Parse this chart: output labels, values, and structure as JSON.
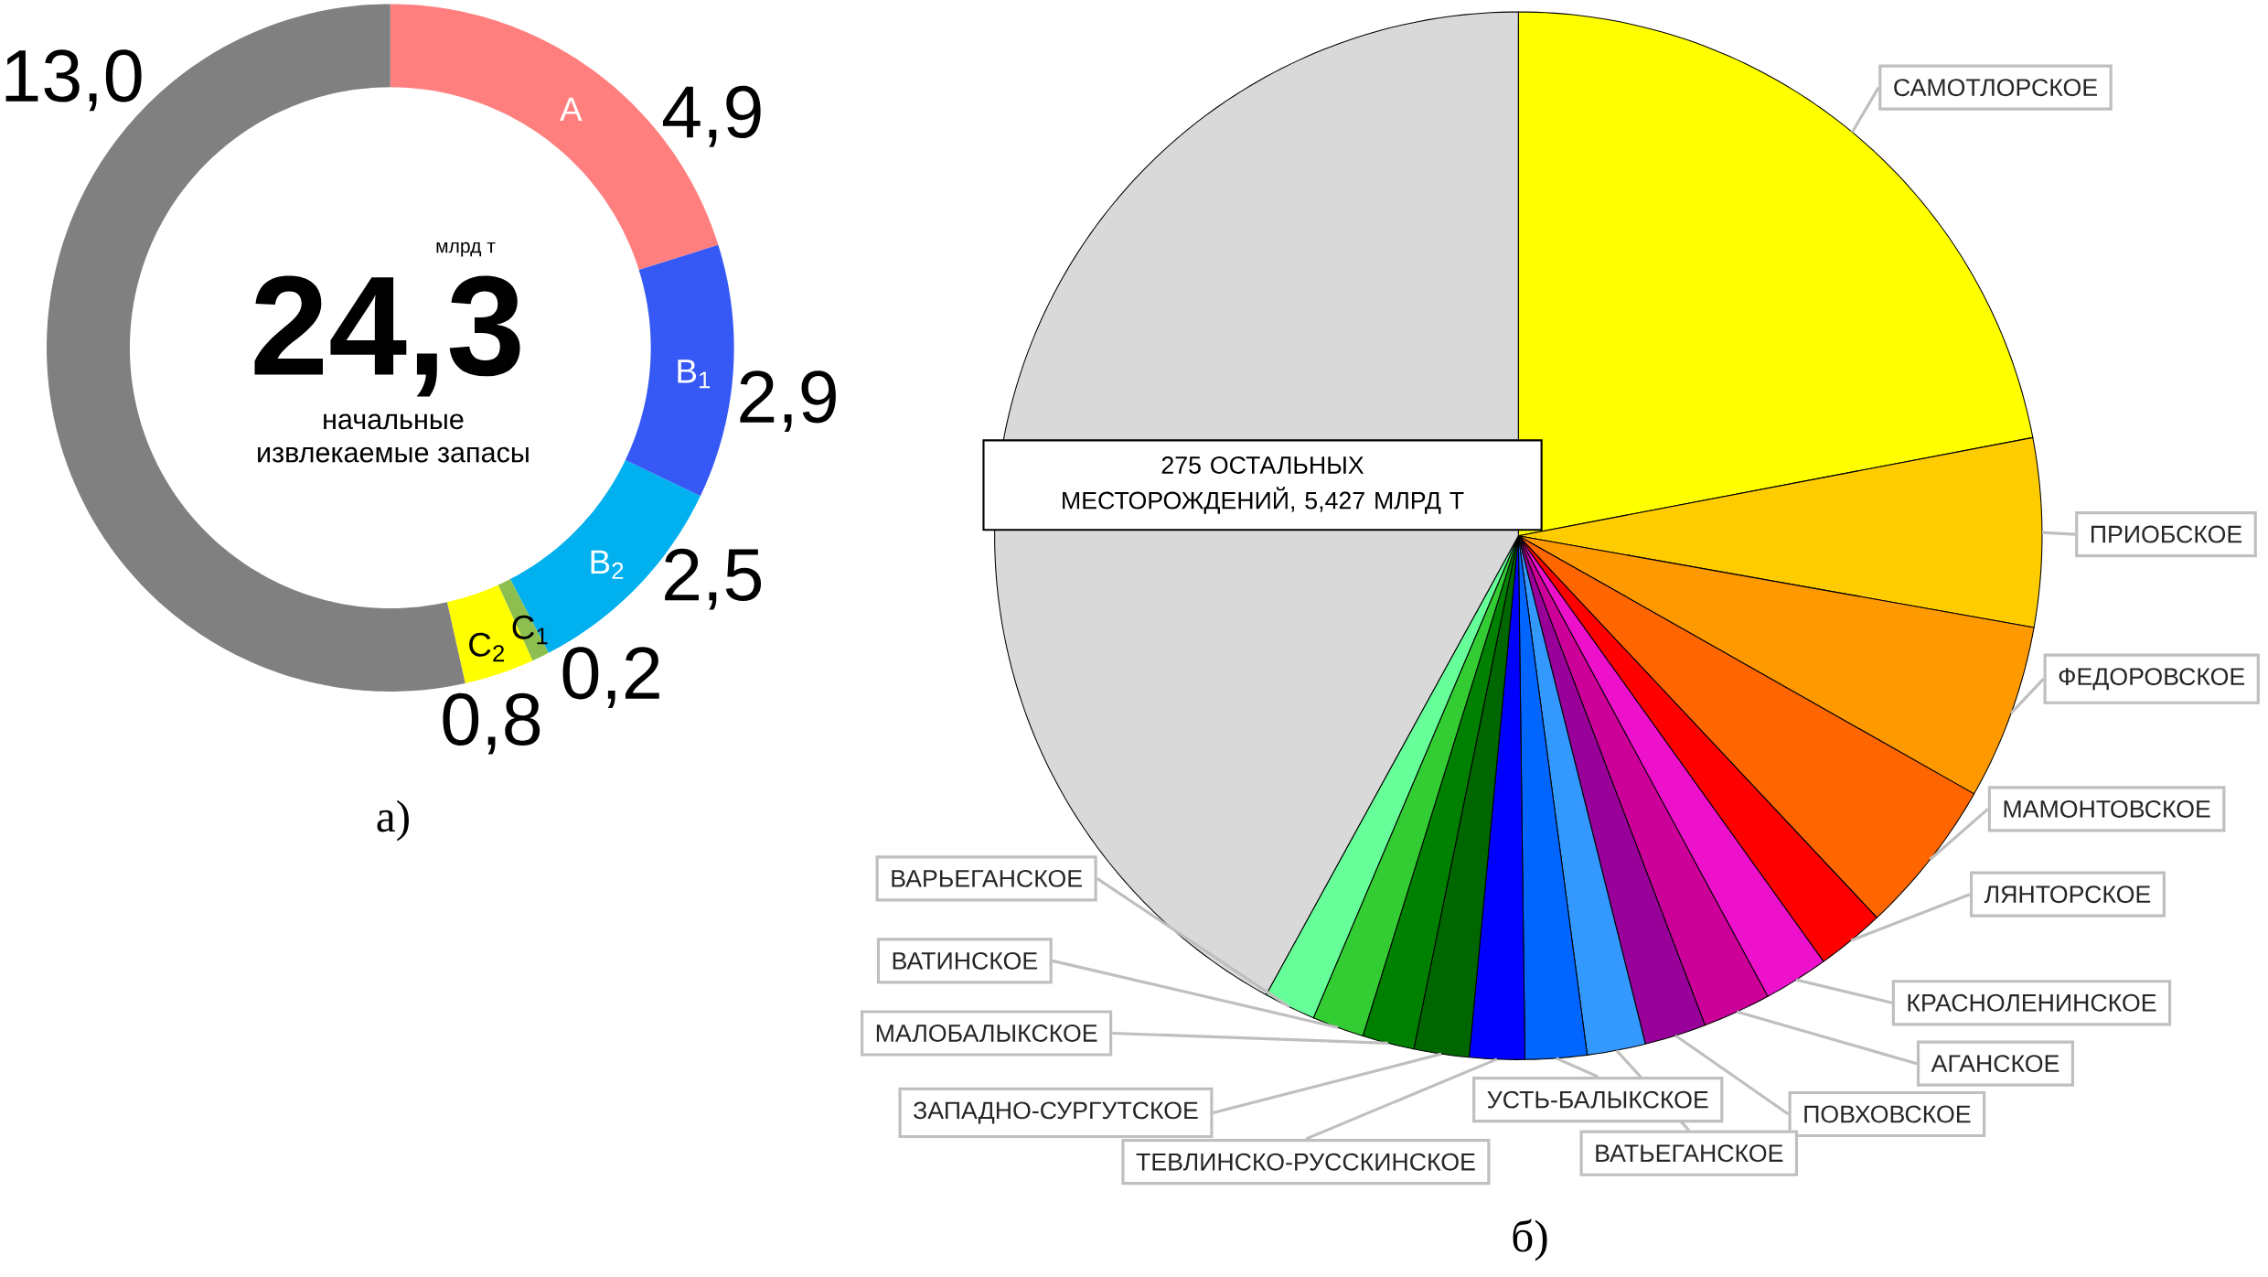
{
  "chart_data": [
    {
      "type": "donut",
      "title": "а)",
      "categories": [
        "A",
        "B$_{1}$",
        "B$_{2}$",
        "C$_{1}$",
        "C$_{2}$",
        null
      ],
      "values": [
        4.9,
        2.9,
        2.5,
        0.2,
        0.8,
        13.0
      ],
      "value_labels": [
        "4,9",
        "2,9",
        "2,5",
        "0,2",
        "0,8",
        "13,0"
      ],
      "colors": [
        "#ff7f7f",
        "#3658f5",
        "#00b0ef",
        "#8cbf4f",
        "#ffff00",
        "#808080"
      ],
      "annotations": [
        "млрд т",
        "24,3",
        "начальные",
        "извлекаемые запасы"
      ]
    },
    {
      "type": "pie",
      "title": "б)",
      "categories": [
        "САМОТЛОРСКОЕ",
        "ПРИОБСКОЕ",
        "ФЕДОРОВСКОЕ",
        "МАМОНТОВСКОЕ",
        "ЛЯНТОРСКОЕ",
        "КРАСНОЛЕНИНСКОЕ",
        "АГАНСКОЕ",
        "ПОВХОВСКОЕ",
        "ВАТЬЕГАНСКОЕ",
        "УСТЬ-БАЛЫКСКОЕ",
        "ТЕВЛИНСКО-РУССКИНСКОЕ",
        "ЗАПАДНО-СУРГУТСКОЕ",
        "МАЛОБАЛЫКСКОЕ",
        "ВАТИНСКОЕ",
        "ВАРЬЕГАНСКОЕ",
        "275 ОСТАЛЬНЫХ МЕСТОРОЖДЕНИЙ, 5,427 МЛРД Т"
      ],
      "values": [
        22.0,
        5.8,
        5.4,
        4.8,
        2.1,
        2.0,
        2.1,
        1.9,
        1.8,
        1.9,
        1.7,
        1.7,
        1.6,
        1.6,
        1.6,
        42.0
      ],
      "colors": [
        "#ffff00",
        "#ffcc00",
        "#ff9900",
        "#ff6600",
        "#ff0000",
        "#ee11cc",
        "#cc0099",
        "#990099",
        "#3399ff",
        "#0066ff",
        "#0000ff",
        "#006600",
        "#008000",
        "#33cc33",
        "#66ff99",
        "#d9d9d9"
      ]
    }
  ]
}
